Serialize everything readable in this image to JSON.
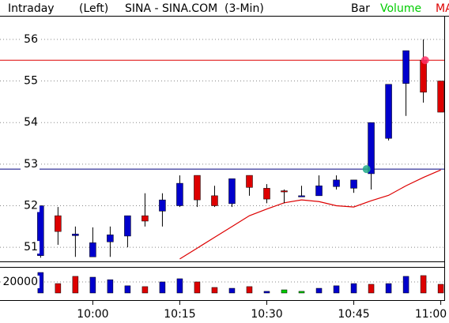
{
  "header": {
    "mode": "Intraday",
    "side": "(Left)",
    "title": "SINA - SINA.COM  (3-Min)",
    "legend": [
      {
        "label": "Bar",
        "color": "#000000"
      },
      {
        "label": "Volume",
        "color": "#00cc00"
      },
      {
        "label": "MA",
        "color": "#dd0000"
      }
    ]
  },
  "chart_data": [
    {
      "type": "candlestick",
      "x": [
        591,
        594,
        597,
        600,
        603,
        606,
        609,
        612,
        615,
        618,
        621,
        624,
        627,
        630,
        633,
        636,
        639,
        642,
        645,
        648,
        651,
        654,
        657,
        660
      ],
      "open": [
        50.8,
        51.76,
        51.28,
        50.77,
        51.13,
        51.27,
        51.76,
        51.87,
        52.0,
        52.73,
        52.24,
        52.05,
        52.73,
        52.42,
        52.36,
        52.24,
        52.24,
        52.46,
        52.42,
        52.77,
        53.62,
        54.94,
        55.5,
        55.0
      ],
      "high": [
        52.0,
        51.97,
        51.5,
        51.48,
        51.5,
        51.76,
        52.3,
        52.3,
        52.73,
        52.73,
        52.48,
        52.65,
        52.73,
        52.52,
        52.39,
        52.48,
        52.73,
        52.73,
        52.62,
        54.0,
        54.92,
        55.73,
        56.0,
        55.0
      ],
      "low": [
        50.75,
        51.06,
        50.77,
        50.77,
        50.77,
        51.0,
        51.5,
        51.5,
        51.97,
        51.97,
        51.97,
        51.97,
        52.24,
        52.06,
        52.06,
        52.22,
        52.24,
        52.39,
        52.31,
        52.39,
        53.57,
        54.16,
        54.48,
        54.25
      ],
      "close": [
        52.0,
        51.38,
        51.32,
        51.11,
        51.3,
        51.76,
        51.63,
        52.14,
        52.54,
        52.14,
        52.0,
        52.65,
        52.44,
        52.16,
        52.34,
        52.24,
        52.48,
        52.62,
        52.62,
        54.0,
        54.92,
        55.73,
        54.73,
        54.25
      ],
      "up_color": "#0000cc",
      "down_color": "#dd0000",
      "ma": {
        "color": "#dd0000",
        "values": [
          null,
          null,
          null,
          null,
          null,
          null,
          null,
          null,
          50.72,
          50.98,
          51.24,
          51.5,
          51.76,
          51.92,
          52.07,
          52.14,
          52.1,
          52.0,
          51.97,
          52.12,
          52.25,
          52.48,
          52.68,
          52.86
        ]
      },
      "hlines": [
        {
          "value": 55.5,
          "color": "#dd0000"
        },
        {
          "value": 52.88,
          "color": "#000080"
        }
      ],
      "markers": [
        {
          "x": 657.3,
          "y": 55.5,
          "color": "#ff3366"
        },
        {
          "x": 647.2,
          "y": 52.88,
          "color": "#22aa88"
        }
      ],
      "xlim": [
        584,
        660.6
      ],
      "ylim": [
        50.68,
        56.53
      ],
      "yticks": [
        51,
        52,
        53,
        54,
        55,
        56
      ],
      "xticks": [
        {
          "value": 600,
          "label": "10:00"
        },
        {
          "value": 615,
          "label": "10:15"
        },
        {
          "value": 630,
          "label": "10:30"
        },
        {
          "value": 645,
          "label": "10:45"
        },
        {
          "value": 660,
          "label": "11:00"
        }
      ],
      "grid": true
    },
    {
      "type": "bar",
      "x": [
        591,
        594,
        597,
        600,
        603,
        606,
        609,
        612,
        615,
        618,
        621,
        624,
        627,
        630,
        633,
        636,
        639,
        642,
        645,
        648,
        651,
        654,
        657,
        660
      ],
      "values": [
        37000,
        17000,
        30000,
        28500,
        24000,
        13000,
        11500,
        20000,
        25700,
        20000,
        10000,
        8500,
        11500,
        3000,
        5700,
        3000,
        8500,
        13000,
        17000,
        15700,
        17000,
        30000,
        31400,
        15700
      ],
      "colors": [
        "#0000cc",
        "#dd0000",
        "#dd0000",
        "#0000cc",
        "#0000cc",
        "#0000cc",
        "#dd0000",
        "#0000cc",
        "#0000cc",
        "#dd0000",
        "#dd0000",
        "#0000cc",
        "#dd0000",
        "#0000cc",
        "#00cc00",
        "#00cc00",
        "#0000cc",
        "#0000cc",
        "#0000cc",
        "#dd0000",
        "#0000cc",
        "#0000cc",
        "#dd0000",
        "#dd0000"
      ],
      "xlim": [
        584,
        660.6
      ],
      "ylim": [
        0,
        47000
      ],
      "yticks": [
        20000
      ],
      "grid": true
    }
  ]
}
